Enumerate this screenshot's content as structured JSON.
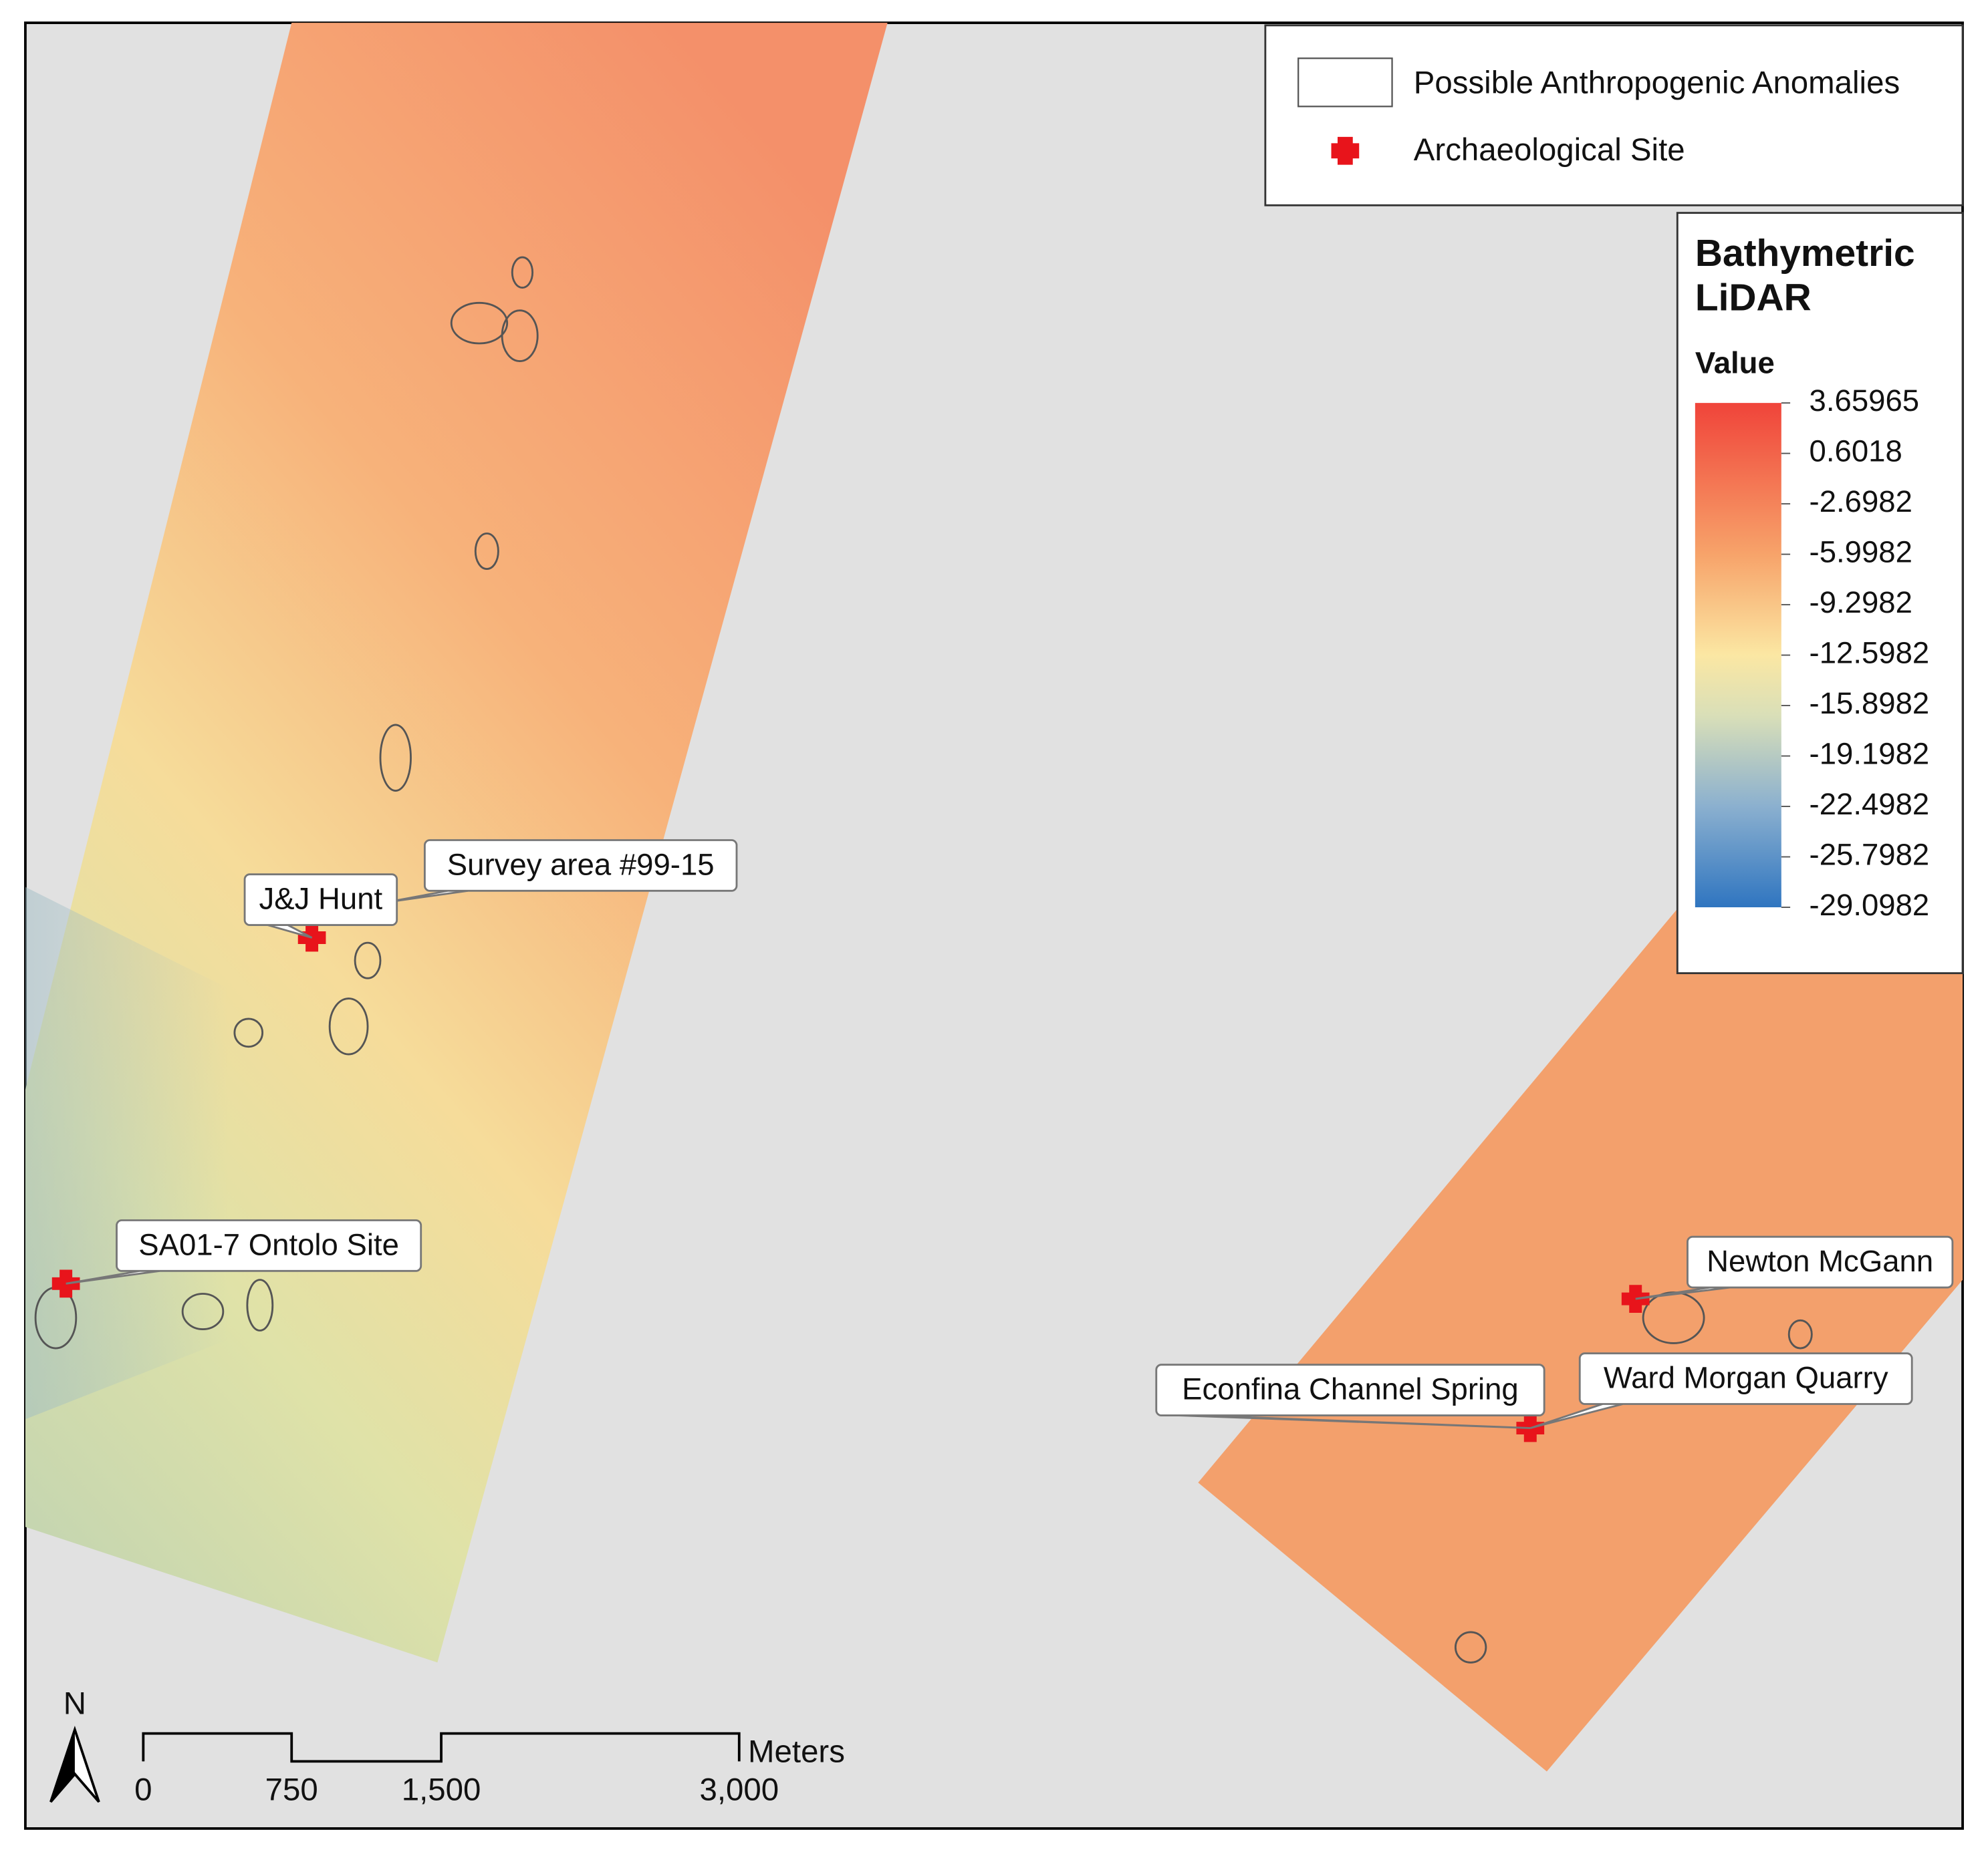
{
  "legend": {
    "items": [
      {
        "label": "Possible Anthropogenic Anomalies"
      },
      {
        "label": "Archaeological Site"
      }
    ]
  },
  "colorbar": {
    "title_lines": [
      "Bathymetric",
      "LiDAR"
    ],
    "subtitle": "Value",
    "labels": [
      "3.65965",
      "0.6018",
      "-2.6982",
      "-5.9982",
      "-9.2982",
      "-12.5982",
      "-15.8982",
      "-19.1982",
      "-22.4982",
      "-25.7982",
      "-29.0982"
    ]
  },
  "sites": [
    {
      "label": "Survey area #99-15"
    },
    {
      "label": "J&J Hunt"
    },
    {
      "label": "SA01-7 Ontolo Site"
    },
    {
      "label": "Newton McGann"
    },
    {
      "label": "Econfina Channel Spring"
    },
    {
      "label": "Ward Morgan Quarry"
    }
  ],
  "north": "N",
  "scale_bar": {
    "unit": "Meters",
    "labels": [
      "0",
      "750",
      "1,500",
      "3,000"
    ]
  }
}
